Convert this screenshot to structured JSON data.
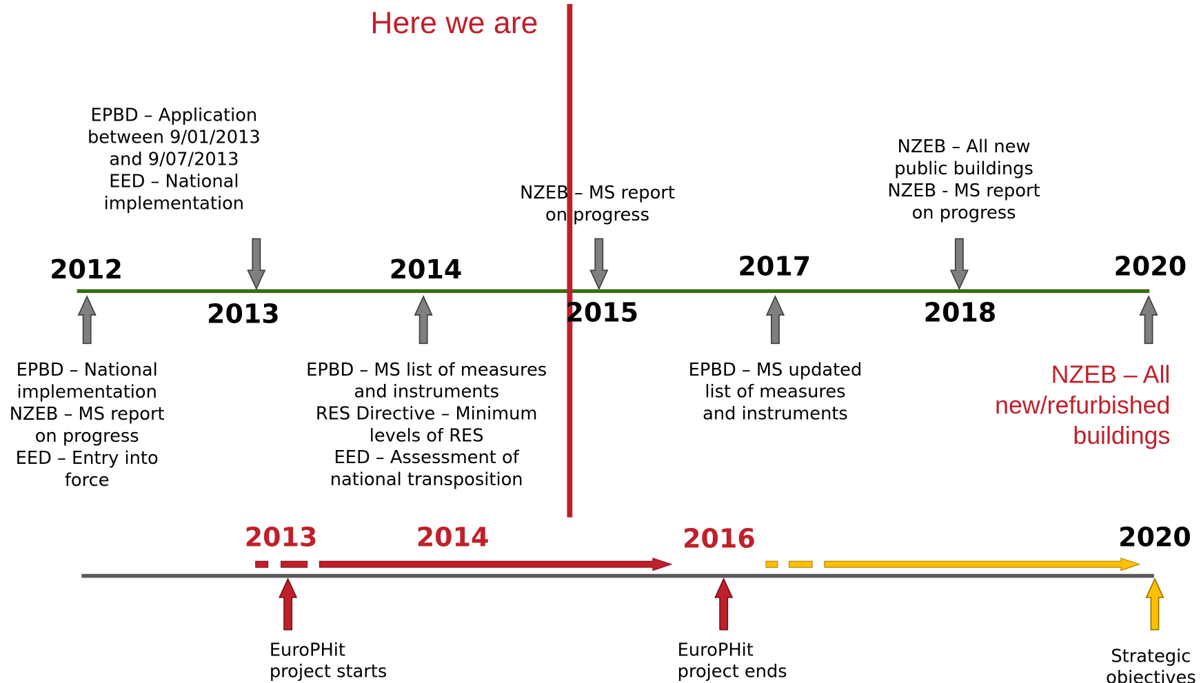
{
  "marker": "Here we are",
  "main_timeline": {
    "years": [
      "2012",
      "2013",
      "2014",
      "2015",
      "2017",
      "2018",
      "2020"
    ],
    "notes": [
      {
        "lines": [
          "EPBD – Application",
          "between 9/01/2013",
          "and 9/07/2013",
          "EED – National",
          "implementation"
        ]
      },
      {
        "lines": [
          "NZEB – MS report",
          "on progress"
        ]
      },
      {
        "lines": [
          "NZEB – All new",
          "public buildings",
          "NZEB - MS report",
          "on progress"
        ]
      },
      {
        "lines": [
          "EPBD – National",
          "implementation",
          "NZEB – MS report",
          "on progress",
          "EED – Entry into",
          "force"
        ]
      },
      {
        "lines": [
          "EPBD – MS list of measures",
          "and instruments",
          "RES Directive – Minimum",
          "levels of RES",
          "EED – Assessment of",
          "national transposition"
        ]
      },
      {
        "lines": [
          "EPBD – MS updated",
          "list of measures",
          "and instruments"
        ]
      },
      {
        "lines": [
          "NZEB –  All",
          "new/refurbished",
          "buildings"
        ]
      }
    ]
  },
  "project_timeline": {
    "years": [
      "2013",
      "2014",
      "2016",
      "2020"
    ],
    "events": [
      {
        "lines": [
          "EuroPHit",
          "project starts"
        ]
      },
      {
        "lines": [
          "EuroPHit",
          "project ends"
        ]
      },
      {
        "lines": [
          "Strategic",
          "objectives"
        ]
      }
    ]
  }
}
